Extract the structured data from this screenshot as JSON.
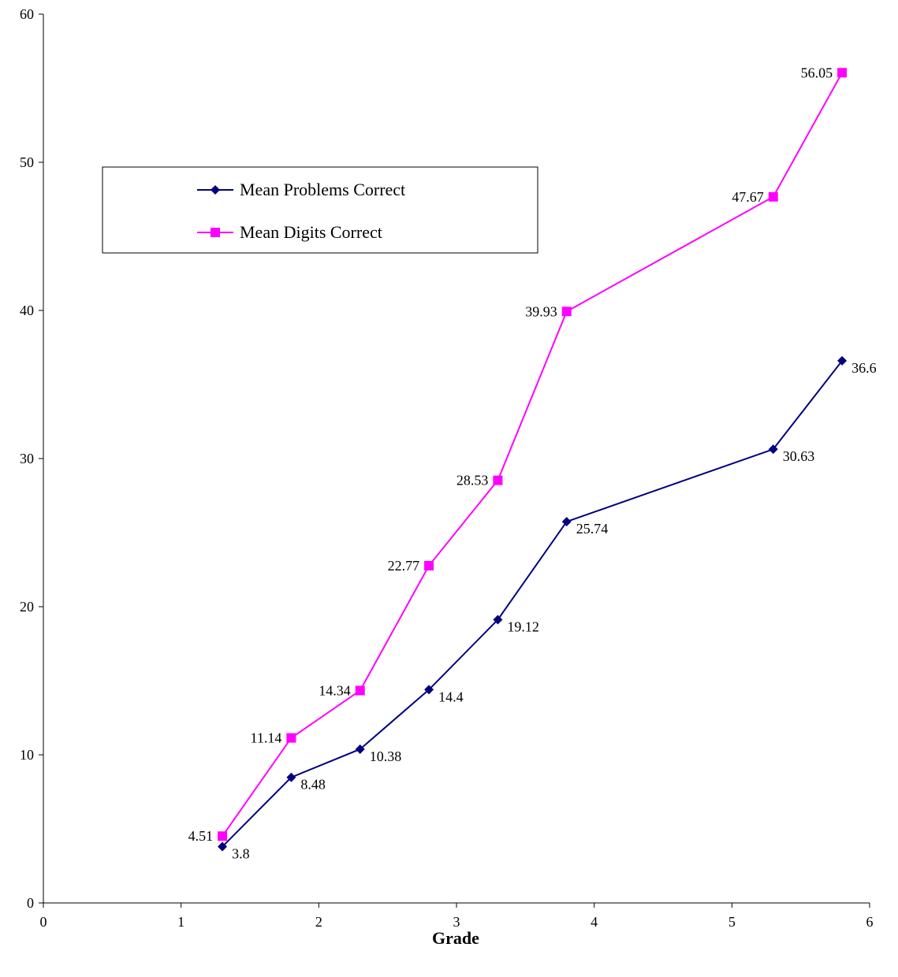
{
  "chart_data": {
    "type": "line",
    "title": "",
    "xlabel": "Grade",
    "ylabel": "",
    "xlim": [
      0,
      6
    ],
    "ylim": [
      0,
      60
    ],
    "x_ticks": [
      "0",
      "1",
      "2",
      "3",
      "4",
      "5",
      "6"
    ],
    "y_ticks": [
      "0",
      "10",
      "20",
      "30",
      "40",
      "50",
      "60"
    ],
    "grid": false,
    "legend_position": "upper-left",
    "series": [
      {
        "name": "Mean Problems Correct",
        "color": "#000080",
        "marker": "diamond",
        "x": [
          1.3,
          1.8,
          2.3,
          2.8,
          3.3,
          3.8,
          5.3,
          5.8
        ],
        "values": [
          3.8,
          8.48,
          10.38,
          14.4,
          19.12,
          25.74,
          30.63,
          36.6
        ],
        "labels": [
          "3.8",
          "8.48",
          "10.38",
          "14.4",
          "19.12",
          "25.74",
          "30.63",
          "36.6"
        ],
        "label_side": "right"
      },
      {
        "name": "Mean Digits Correct",
        "color": "#FF00FF",
        "marker": "square",
        "x": [
          1.3,
          1.8,
          2.3,
          2.8,
          3.3,
          3.8,
          5.3,
          5.8
        ],
        "values": [
          4.51,
          11.14,
          14.34,
          22.77,
          28.53,
          39.93,
          47.67,
          56.05
        ],
        "labels": [
          "4.51",
          "11.14",
          "14.34",
          "22.77",
          "28.53",
          "39.93",
          "47.67",
          "56.05"
        ],
        "label_side": "left"
      }
    ]
  }
}
